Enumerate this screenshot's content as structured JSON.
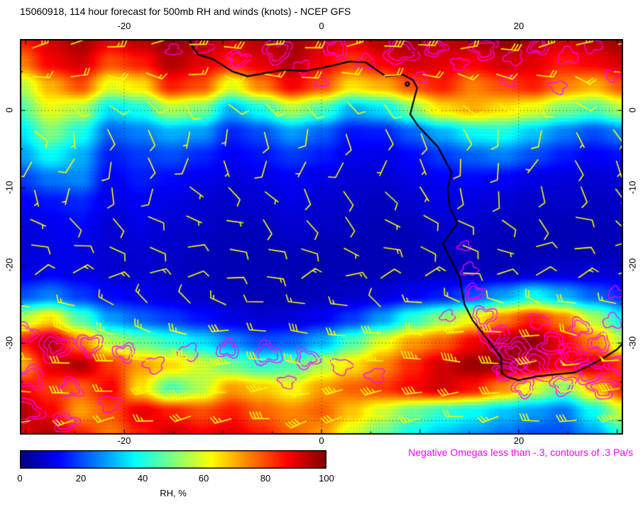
{
  "title": "15060918, 114 hour forecast for 500mb RH and winds (knots) - NCEP GFS",
  "annotation": "Negative Omegas less than -.3, contours of .3 Pa/s",
  "annotation_color": "#ff00ff",
  "axes": {
    "lon_labels": [
      "-20",
      "0",
      "20"
    ],
    "lat_labels": [
      "0",
      "-10",
      "-20",
      "-30"
    ]
  },
  "colorbar": {
    "label": "RH, %",
    "ticks": [
      "0",
      "20",
      "40",
      "60",
      "80",
      "100"
    ]
  },
  "chart_data": {
    "type": "heatmap",
    "title": "15060918, 114 hour forecast for 500mb RH and winds (knots) - NCEP GFS",
    "field": "500mb relative humidity (%) with wind barbs (knots)",
    "model": "NCEP GFS",
    "x_ticks": [
      -20,
      0,
      20
    ],
    "y_ticks": [
      0,
      -10,
      -20,
      -30
    ],
    "lon_range": [
      -30.6,
      30.6
    ],
    "lat_range": [
      -41.8,
      9.2
    ],
    "grid_lines": {
      "lons": [
        -20,
        0,
        20
      ],
      "lats": [
        0,
        -10,
        -20,
        -30,
        -40
      ]
    },
    "colorbar": {
      "label": "RH, %",
      "min": 0,
      "max": 100,
      "tick_values": [
        0,
        20,
        40,
        60,
        80,
        100
      ]
    },
    "colormap": [
      {
        "t": 0,
        "c": "#000085"
      },
      {
        "t": 0.125,
        "c": "#0000ff"
      },
      {
        "t": 0.375,
        "c": "#00ffff"
      },
      {
        "t": 0.625,
        "c": "#ffff00"
      },
      {
        "t": 0.875,
        "c": "#ff0000"
      },
      {
        "t": 1,
        "c": "#7f0000"
      }
    ],
    "rh_grid": {
      "lon_start": -30.6,
      "lon_step": 3.06,
      "lat_start": 9.2,
      "lat_step": -3.0,
      "values": [
        [
          85,
          92,
          97,
          90,
          95,
          98,
          96,
          92,
          95,
          97,
          93,
          90,
          95,
          97,
          94,
          96,
          98,
          95,
          92,
          95,
          97
        ],
        [
          75,
          88,
          92,
          80,
          85,
          95,
          90,
          85,
          90,
          95,
          88,
          82,
          88,
          92,
          90,
          88,
          92,
          90,
          85,
          88,
          92
        ],
        [
          55,
          70,
          80,
          60,
          65,
          85,
          80,
          60,
          75,
          88,
          80,
          65,
          70,
          80,
          85,
          75,
          80,
          85,
          75,
          70,
          80
        ],
        [
          45,
          60,
          55,
          35,
          40,
          55,
          50,
          30,
          40,
          55,
          45,
          30,
          35,
          50,
          65,
          70,
          65,
          60,
          50,
          45,
          55
        ],
        [
          35,
          50,
          40,
          22,
          25,
          30,
          28,
          16,
          20,
          28,
          22,
          14,
          15,
          22,
          30,
          38,
          40,
          32,
          25,
          20,
          25
        ],
        [
          28,
          38,
          30,
          15,
          18,
          20,
          16,
          12,
          14,
          18,
          15,
          11,
          10,
          13,
          18,
          22,
          25,
          20,
          15,
          12,
          14
        ],
        [
          18,
          24,
          26,
          12,
          15,
          13,
          11,
          9,
          10,
          12,
          10,
          8,
          8,
          10,
          12,
          13,
          12,
          10,
          9,
          8,
          9
        ],
        [
          12,
          14,
          16,
          10,
          12,
          10,
          8,
          7,
          8,
          10,
          8,
          7,
          6,
          8,
          10,
          9,
          8,
          7,
          7,
          6,
          7
        ],
        [
          9,
          11,
          13,
          8,
          10,
          8,
          7,
          6,
          6,
          8,
          7,
          6,
          5,
          6,
          8,
          7,
          6,
          6,
          5,
          5,
          6
        ],
        [
          8,
          10,
          10,
          8,
          8,
          7,
          6,
          5,
          5,
          6,
          5,
          5,
          5,
          5,
          6,
          6,
          5,
          5,
          5,
          5,
          5
        ],
        [
          10,
          12,
          10,
          8,
          8,
          7,
          6,
          5,
          5,
          5,
          5,
          5,
          5,
          6,
          6,
          6,
          6,
          7,
          8,
          8,
          8
        ],
        [
          20,
          25,
          18,
          13,
          11,
          9,
          7,
          6,
          5,
          5,
          6,
          7,
          9,
          12,
          15,
          20,
          28,
          38,
          30,
          22,
          16
        ],
        [
          55,
          65,
          45,
          28,
          22,
          18,
          14,
          10,
          8,
          9,
          12,
          18,
          28,
          42,
          52,
          62,
          75,
          85,
          75,
          55,
          38
        ],
        [
          85,
          95,
          75,
          55,
          48,
          42,
          35,
          26,
          20,
          22,
          30,
          45,
          60,
          72,
          78,
          88,
          96,
          98,
          88,
          75,
          55
        ],
        [
          70,
          90,
          95,
          82,
          72,
          66,
          58,
          48,
          42,
          45,
          55,
          65,
          74,
          84,
          92,
          97,
          98,
          94,
          88,
          92,
          82
        ],
        [
          88,
          82,
          78,
          88,
          65,
          45,
          55,
          72,
          68,
          62,
          72,
          78,
          82,
          88,
          92,
          86,
          74,
          58,
          48,
          68,
          84
        ],
        [
          95,
          88,
          72,
          80,
          90,
          85,
          80,
          85,
          78,
          74,
          78,
          68,
          58,
          48,
          42,
          38,
          32,
          28,
          24,
          38,
          58
        ],
        [
          90,
          95,
          85,
          75,
          85,
          92,
          88,
          90,
          85,
          78,
          72,
          58,
          48,
          38,
          32,
          28,
          24,
          20,
          20,
          28,
          42
        ]
      ]
    },
    "wind_barbs": {
      "color": "#ffff00",
      "lon_start": -29.3,
      "lon_step": 3.95,
      "cols": 16,
      "rows": [
        {
          "lat": 8.3,
          "dir": 85,
          "dvar": 30,
          "speed": 25,
          "svar": 12
        },
        {
          "lat": 4.6,
          "dir": 100,
          "dvar": 40,
          "speed": 18,
          "svar": 8
        },
        {
          "lat": 0.9,
          "dir": 130,
          "dvar": 60,
          "speed": 10,
          "svar": 6
        },
        {
          "lat": -2.8,
          "dir": 160,
          "dvar": 70,
          "speed": 8,
          "svar": 5
        },
        {
          "lat": -6.5,
          "dir": 185,
          "dvar": 70,
          "speed": 8,
          "svar": 5
        },
        {
          "lat": -10.2,
          "dir": 160,
          "dvar": 70,
          "speed": 7,
          "svar": 5
        },
        {
          "lat": -13.9,
          "dir": 120,
          "dvar": 60,
          "speed": 8,
          "svar": 5
        },
        {
          "lat": -17.6,
          "dir": 95,
          "dvar": 50,
          "speed": 10,
          "svar": 6
        },
        {
          "lat": -21.3,
          "dir": 75,
          "dvar": 50,
          "speed": 12,
          "svar": 8
        },
        {
          "lat": -25.0,
          "dir": 295,
          "dvar": 50,
          "speed": 16,
          "svar": 10
        },
        {
          "lat": -28.7,
          "dir": 280,
          "dvar": 30,
          "speed": 25,
          "svar": 12
        },
        {
          "lat": -32.4,
          "dir": 270,
          "dvar": 25,
          "speed": 38,
          "svar": 24
        },
        {
          "lat": -36.1,
          "dir": 265,
          "dvar": 25,
          "speed": 32,
          "svar": 18
        },
        {
          "lat": -39.8,
          "dir": 260,
          "dvar": 30,
          "speed": 30,
          "svar": 22
        }
      ]
    },
    "omega_contours": {
      "color": "#ff00ff",
      "contour_interval": "0.3 Pa/s below -0.3",
      "blobs": [
        [
          -15,
          7.8,
          0.7,
          1
        ],
        [
          -12,
          8.2,
          0.9,
          1
        ],
        [
          -8.5,
          6.6,
          1.1,
          2
        ],
        [
          -4.5,
          7.6,
          1.4,
          2
        ],
        [
          -2,
          5.6,
          0.8,
          1
        ],
        [
          1.5,
          8,
          1.2,
          2
        ],
        [
          4.5,
          6.2,
          0.9,
          1
        ],
        [
          8,
          7.6,
          1.6,
          2
        ],
        [
          11.5,
          8.1,
          1.1,
          2
        ],
        [
          14,
          6,
          0.8,
          1
        ],
        [
          16.5,
          7.9,
          1.3,
          2
        ],
        [
          19.5,
          6.8,
          0.9,
          1
        ],
        [
          22,
          8.2,
          1,
          2
        ],
        [
          25,
          7,
          1,
          1
        ],
        [
          27.5,
          8.4,
          0.9,
          1
        ],
        [
          29.5,
          4.5,
          0.7,
          1
        ],
        [
          24,
          3,
          0.8,
          1
        ],
        [
          19,
          3.8,
          0.7,
          1
        ],
        [
          10,
          4.2,
          0.7,
          1
        ],
        [
          0,
          3.6,
          0.6,
          1
        ],
        [
          -30.2,
          -28.8,
          1.3,
          2
        ],
        [
          -27,
          -30.5,
          1.7,
          3
        ],
        [
          -23.5,
          -30.2,
          1.3,
          2
        ],
        [
          -20,
          -31.2,
          1.1,
          2
        ],
        [
          -29.5,
          -34.5,
          1.4,
          2
        ],
        [
          -25.5,
          -35.8,
          1.2,
          2
        ],
        [
          -30,
          -38.8,
          1.6,
          2
        ],
        [
          -26,
          -40.2,
          1.2,
          2
        ],
        [
          -21.5,
          -37.8,
          1,
          1
        ],
        [
          -17,
          -32.8,
          1,
          1
        ],
        [
          -13.5,
          -31.2,
          1,
          1
        ],
        [
          -9.5,
          -30.8,
          1.1,
          2
        ],
        [
          -5.5,
          -31.4,
          1.4,
          2
        ],
        [
          -1.5,
          -32,
          1.2,
          2
        ],
        [
          2,
          -33,
          1,
          1
        ],
        [
          -3.5,
          -35,
          0.8,
          1
        ],
        [
          5.5,
          -34.2,
          0.9,
          1
        ],
        [
          14.5,
          -17.5,
          0.6,
          1
        ],
        [
          15,
          -20.5,
          0.8,
          1
        ],
        [
          15.5,
          -23.5,
          1,
          2
        ],
        [
          16.5,
          -26.5,
          1.2,
          2
        ],
        [
          17.5,
          -29.2,
          1.5,
          3
        ],
        [
          19.5,
          -31.2,
          1.8,
          3
        ],
        [
          21.5,
          -33,
          1.9,
          3
        ],
        [
          23.5,
          -30.2,
          1.4,
          2
        ],
        [
          25.5,
          -31.8,
          1.7,
          3
        ],
        [
          27.2,
          -33.8,
          1.4,
          2
        ],
        [
          24.5,
          -35.4,
          1.2,
          2
        ],
        [
          20.5,
          -35.8,
          1.1,
          2
        ],
        [
          28.2,
          -30,
          1.1,
          2
        ],
        [
          29.5,
          -27.2,
          0.9,
          1
        ],
        [
          26.2,
          -28,
          1.1,
          2
        ],
        [
          22,
          -27.2,
          0.9,
          1
        ],
        [
          18.5,
          -33.8,
          1,
          2
        ],
        [
          28.5,
          -35.8,
          1.3,
          2
        ],
        [
          30.2,
          -32.8,
          1.2,
          2
        ],
        [
          12.8,
          -26.5,
          0.7,
          1
        ],
        [
          29.8,
          -23.5,
          0.7,
          1
        ]
      ]
    },
    "coastline": [
      [
        -13.4,
        9.2
      ],
      [
        -13.0,
        8.0
      ],
      [
        -12.5,
        7.2
      ],
      [
        -11.0,
        6.6
      ],
      [
        -9.0,
        5.0
      ],
      [
        -7.5,
        4.4
      ],
      [
        -4.0,
        5.2
      ],
      [
        -1.5,
        5.1
      ],
      [
        1.2,
        5.8
      ],
      [
        2.8,
        6.3
      ],
      [
        4.5,
        6.2
      ],
      [
        5.5,
        5.3
      ],
      [
        6.5,
        4.4
      ],
      [
        8.3,
        4.6
      ],
      [
        9.3,
        3.9
      ],
      [
        9.7,
        2.9
      ],
      [
        9.3,
        1.0
      ],
      [
        9.0,
        -0.5
      ],
      [
        9.8,
        -2.0
      ],
      [
        11.2,
        -3.9
      ],
      [
        11.8,
        -4.7
      ],
      [
        13.2,
        -8.0
      ],
      [
        12.8,
        -10.0
      ],
      [
        13.0,
        -12.5
      ],
      [
        13.8,
        -14.5
      ],
      [
        12.3,
        -17.2
      ],
      [
        14.0,
        -21.5
      ],
      [
        14.5,
        -25.0
      ],
      [
        15.3,
        -27.0
      ],
      [
        16.5,
        -29.0
      ],
      [
        18.2,
        -31.8
      ],
      [
        18.3,
        -33.9
      ],
      [
        18.9,
        -34.4
      ],
      [
        20.0,
        -34.8
      ],
      [
        21.8,
        -34.3
      ],
      [
        24.0,
        -34.0
      ],
      [
        25.7,
        -33.8
      ],
      [
        27.0,
        -33.0
      ],
      [
        28.5,
        -32.0
      ],
      [
        30.0,
        -30.8
      ],
      [
        30.6,
        -30.0
      ]
    ],
    "island": [
      8.7,
      3.4
    ]
  }
}
